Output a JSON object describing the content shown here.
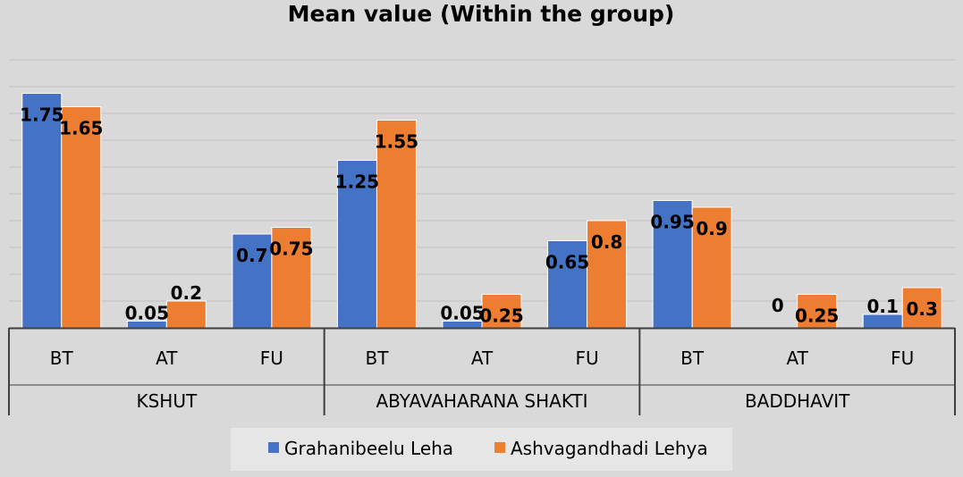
{
  "chart_data": {
    "type": "bar",
    "title": "Mean value (Within the group)",
    "groups": [
      {
        "label": "KSHUT",
        "categories": [
          "BT",
          "AT",
          "FU"
        ]
      },
      {
        "label": "ABYAVAHARANA SHAKTI",
        "categories": [
          "BT",
          "AT",
          "FU"
        ]
      },
      {
        "label": "BADDHAVIT",
        "categories": [
          "BT",
          "AT",
          "FU"
        ]
      }
    ],
    "series": [
      {
        "name": "Grahanibeelu Leha",
        "color": "#4472c4",
        "values": [
          1.75,
          0.05,
          0.7,
          1.25,
          0.05,
          0.65,
          0.95,
          0,
          0.1
        ],
        "labels": [
          "1.75",
          "0.05",
          "0.7",
          "1.25",
          "0.05",
          "0.65",
          "0.95",
          "0",
          "0.1"
        ]
      },
      {
        "name": "Ashvagandhadi Lehya",
        "color": "#ed7d31",
        "values": [
          1.65,
          0.2,
          0.75,
          1.55,
          0.25,
          0.8,
          0.9,
          0.25,
          0.3
        ],
        "labels": [
          "1.65",
          "0.2",
          "0.75",
          "1.55",
          "0.25",
          "0.8",
          "0.9",
          "0.25",
          "0.3"
        ]
      }
    ],
    "ylim": [
      0,
      2.0
    ],
    "gridlines": true,
    "grid_step": 0.2,
    "y_tick_labels_shown": false,
    "legend_position": "bottom"
  }
}
